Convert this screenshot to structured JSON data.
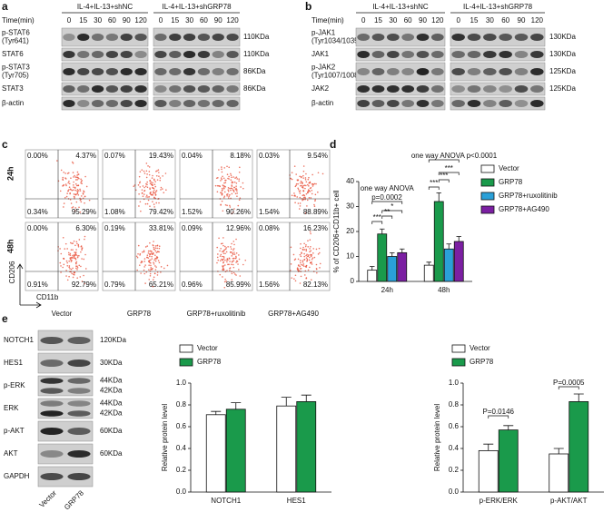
{
  "panel_a": {
    "label": "a",
    "time_label": "Time(min)",
    "groups": [
      "IL-4+IL-13+shNC",
      "IL-4+IL-13+shGRP78"
    ],
    "times": [
      0,
      15,
      30,
      60,
      90,
      120
    ],
    "rows": [
      {
        "name": [
          "p-STAT6",
          "(Tyr641)"
        ],
        "sizes": [
          "110KDa"
        ]
      },
      {
        "name": [
          "STAT6"
        ],
        "sizes": [
          "110KDa"
        ]
      },
      {
        "name": [
          "p-STAT3",
          "(Tyr705)"
        ],
        "sizes": [
          "86KDa"
        ]
      },
      {
        "name": [
          "STAT3"
        ],
        "sizes": [
          "86KDa"
        ]
      },
      {
        "name": [
          "β-actin"
        ]
      }
    ]
  },
  "panel_b": {
    "label": "b",
    "time_label": "Time(min)",
    "groups": [
      "IL-4+IL-13+shNC",
      "IL-4+IL-13+shGRP78"
    ],
    "times": [
      0,
      15,
      30,
      60,
      90,
      120
    ],
    "rows": [
      {
        "name": [
          "p-JAK1",
          "(Tyr1034/1035)"
        ],
        "sizes": [
          "130KDa"
        ]
      },
      {
        "name": [
          "JAK1"
        ],
        "sizes": [
          "130KDa"
        ]
      },
      {
        "name": [
          "p-JAK2",
          "(Tyr1007/1008)"
        ],
        "sizes": [
          "125KDa"
        ]
      },
      {
        "name": [
          "JAK2"
        ],
        "sizes": [
          "125KDa"
        ]
      },
      {
        "name": [
          "β-actin"
        ]
      }
    ]
  },
  "panel_c": {
    "label": "c",
    "times": [
      "24h",
      "48h"
    ],
    "groups": [
      "Vector",
      "GRP78",
      "GRP78+ruxolitinib",
      "GRP78+AG490"
    ],
    "y_axis": "CD206",
    "x_axis": "CD11b",
    "quadrants": [
      [
        [
          "0.00%",
          "4.37%",
          "0.34%",
          "95.29%"
        ],
        [
          "0.07%",
          "19.43%",
          "1.08%",
          "79.42%"
        ],
        [
          "0.04%",
          "8.18%",
          "1.52%",
          "90.26%"
        ],
        [
          "0.03%",
          "9.54%",
          "1.54%",
          "88.89%"
        ]
      ],
      [
        [
          "0.00%",
          "6.30%",
          "0.91%",
          "92.79%"
        ],
        [
          "0.19%",
          "33.81%",
          "0.79%",
          "65.21%"
        ],
        [
          "0.09%",
          "12.96%",
          "0.96%",
          "85.99%"
        ],
        [
          "0.08%",
          "16.23%",
          "1.56%",
          "82.13%"
        ]
      ]
    ]
  },
  "panel_e": {
    "label": "e",
    "lanes": [
      "Vector",
      "GRP78"
    ],
    "rows": [
      {
        "name": [
          "NOTCH1"
        ],
        "sizes": [
          "120KDa"
        ]
      },
      {
        "name": [
          "HES1"
        ],
        "sizes": [
          "30KDa"
        ]
      },
      {
        "name": [
          "p-ERK"
        ],
        "sizes": [
          "44KDa",
          "42KDa"
        ]
      },
      {
        "name": [
          "ERK"
        ],
        "sizes": [
          "44KDa",
          "42KDa"
        ]
      },
      {
        "name": [
          "p-AKT"
        ],
        "sizes": [
          "60KDa"
        ]
      },
      {
        "name": [
          "AKT"
        ],
        "sizes": [
          "60KDa"
        ]
      },
      {
        "name": [
          "GAPDH"
        ]
      }
    ]
  },
  "chart_data": [
    {
      "type": "bar",
      "label": "d",
      "ylabel": "% of CD206+CD11b+ cell",
      "categories": [
        "24h",
        "48h"
      ],
      "series": [
        {
          "name": "Vector",
          "color": "#ffffff",
          "values": [
            4.5,
            6.5
          ],
          "errors": [
            1.5,
            1.2
          ]
        },
        {
          "name": "GRP78",
          "color": "#1a9a4b",
          "values": [
            19,
            32
          ],
          "errors": [
            2,
            3.5
          ]
        },
        {
          "name": "GRP78+ruxolitinib",
          "color": "#2aa0d8",
          "values": [
            10,
            13
          ],
          "errors": [
            1.5,
            2
          ]
        },
        {
          "name": "GRP78+AG490",
          "color": "#7b1fa2",
          "values": [
            11.5,
            16
          ],
          "errors": [
            1.5,
            2
          ]
        }
      ],
      "ylim": [
        0,
        40
      ],
      "yticks": [
        0,
        10,
        20,
        30,
        40
      ],
      "annotations": [
        "one way ANOVA",
        "p=0.0002",
        "one way ANOVA p<0.0001",
        "***",
        "**",
        "*",
        "***",
        "***",
        "***"
      ]
    },
    {
      "type": "bar",
      "ylabel": "Relative protein level",
      "categories": [
        "NOTCH1",
        "HES1"
      ],
      "series": [
        {
          "name": "Vector",
          "color": "#ffffff",
          "values": [
            0.71,
            0.79
          ],
          "errors": [
            0.03,
            0.08
          ]
        },
        {
          "name": "GRP78",
          "color": "#1a9a4b",
          "values": [
            0.76,
            0.83
          ],
          "errors": [
            0.06,
            0.06
          ]
        }
      ],
      "ylim": [
        0,
        1
      ],
      "yticks": [
        {
          "value": 0,
          "label": "0.0"
        },
        0.2,
        0.4,
        0.6,
        0.8,
        {
          "value": 1,
          "label": "1.0"
        }
      ]
    },
    {
      "type": "bar",
      "ylabel": "Relative protein level",
      "categories": [
        "p-ERK/ERK",
        "p-AKT/AKT"
      ],
      "series": [
        {
          "name": "Vector",
          "color": "#ffffff",
          "values": [
            0.38,
            0.35
          ],
          "errors": [
            0.06,
            0.05
          ]
        },
        {
          "name": "GRP78",
          "color": "#1a9a4b",
          "values": [
            0.57,
            0.83
          ],
          "errors": [
            0.04,
            0.07
          ]
        }
      ],
      "ylim": [
        0,
        1
      ],
      "yticks": [
        {
          "value": 0,
          "label": "0.0"
        },
        0.2,
        0.4,
        0.6,
        0.8,
        {
          "value": 1,
          "label": "1.0"
        }
      ],
      "annotations": [
        "P=0.0146",
        "P=0.0005"
      ]
    }
  ]
}
